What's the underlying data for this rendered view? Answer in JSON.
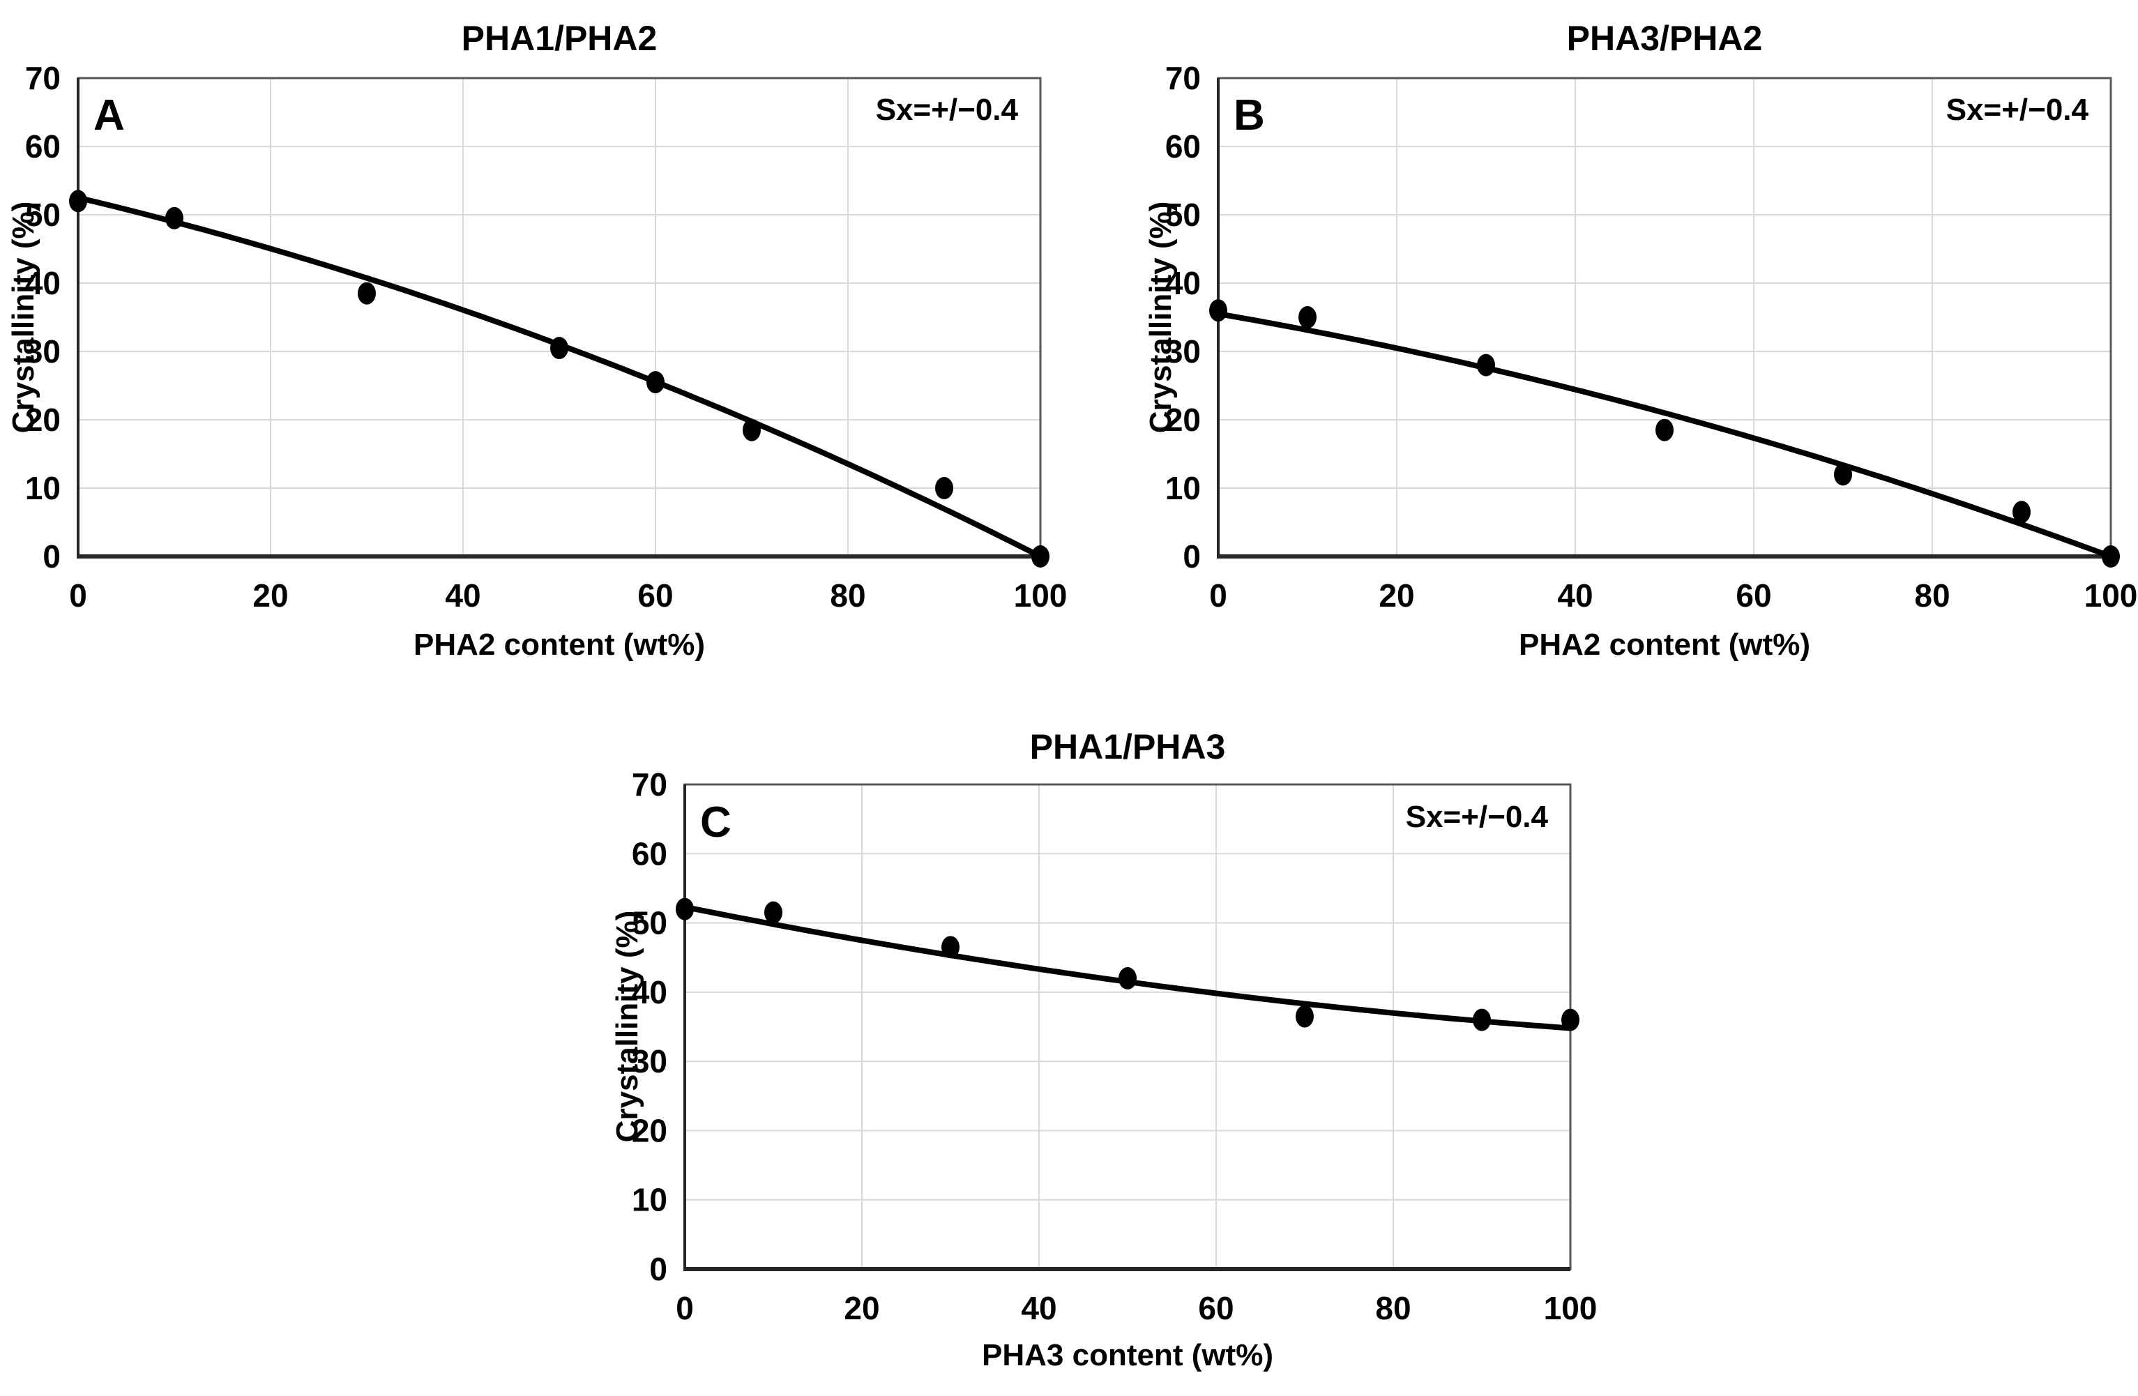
{
  "figure": {
    "kind": "three-panel scatter figure with polynomial trend lines",
    "background": "#ffffff",
    "text_color": "#000000",
    "gridline_color": "#d9d9d9",
    "border_color": "#595959",
    "axis_color": "#262626"
  },
  "chart_data": [
    {
      "type": "scatter",
      "panel_label": "A",
      "title": "PHA1/PHA2",
      "annotation": "Sx=+/−0.4",
      "xlabel": "PHA2 content (wt%)",
      "ylabel": "Crystallinity  (%)",
      "xlim": [
        0,
        100
      ],
      "ylim": [
        0,
        70
      ],
      "xticks": [
        0,
        20,
        40,
        60,
        80,
        100
      ],
      "yticks": [
        0,
        10,
        20,
        30,
        40,
        50,
        60,
        70
      ],
      "x": [
        0,
        10,
        30,
        50,
        60,
        70,
        90,
        100
      ],
      "y": [
        52,
        49.5,
        38.5,
        30.5,
        25.5,
        18.5,
        10,
        0
      ],
      "trend_poly": [
        52.5,
        -0.335,
        -0.0019
      ],
      "grid": true,
      "marker_color": "#000000",
      "line_color": "#000000",
      "legend": "none"
    },
    {
      "type": "scatter",
      "panel_label": "B",
      "title": "PHA3/PHA2",
      "annotation": "Sx=+/−0.4",
      "xlabel": "PHA2 content (wt%)",
      "ylabel": "Crystallinity  (%)",
      "xlim": [
        0,
        100
      ],
      "ylim": [
        0,
        70
      ],
      "xticks": [
        0,
        20,
        40,
        60,
        80,
        100
      ],
      "yticks": [
        0,
        10,
        20,
        30,
        40,
        50,
        60,
        70
      ],
      "x": [
        0,
        10,
        30,
        50,
        70,
        90,
        100
      ],
      "y": [
        36,
        35,
        28,
        18.5,
        12,
        6.5,
        0
      ],
      "trend_poly": [
        35.5,
        -0.225,
        -0.0013
      ],
      "grid": true,
      "marker_color": "#000000",
      "line_color": "#000000",
      "legend": "none"
    },
    {
      "type": "scatter",
      "panel_label": "C",
      "title": "PHA1/PHA3",
      "annotation": "Sx=+/−0.4",
      "xlabel": "PHA3 content (wt%)",
      "ylabel": "Crystallinity  (%)",
      "xlim": [
        0,
        100
      ],
      "ylim": [
        0,
        70
      ],
      "xticks": [
        0,
        20,
        40,
        60,
        80,
        100
      ],
      "yticks": [
        0,
        10,
        20,
        30,
        40,
        50,
        60,
        70
      ],
      "x": [
        0,
        10,
        30,
        50,
        70,
        90,
        100
      ],
      "y": [
        52,
        51.5,
        46.5,
        42,
        36.5,
        36,
        36
      ],
      "trend_poly": [
        52.3,
        -0.257,
        0.00082
      ],
      "grid": true,
      "marker_color": "#000000",
      "line_color": "#000000",
      "legend": "none"
    }
  ]
}
